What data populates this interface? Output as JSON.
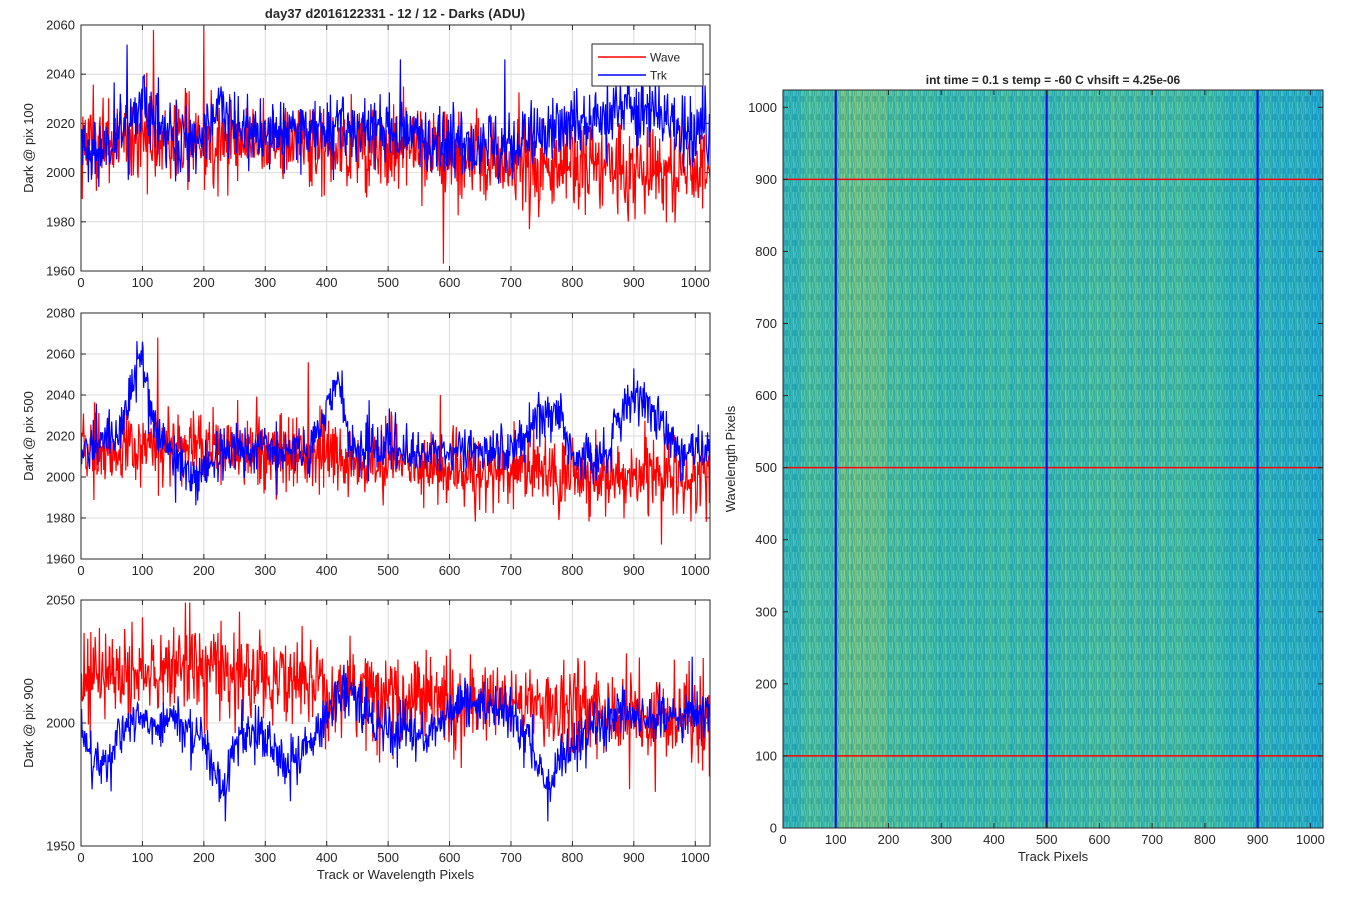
{
  "figure": {
    "suptitle": "day37 d2016122331 - 12 / 12 - Darks (ADU)",
    "colors": {
      "wave": "#ff0000",
      "trk": "#0000ff",
      "grid": "#dcdcdc",
      "axis": "#262626"
    }
  },
  "chart_data": [
    {
      "type": "line",
      "ylabel": "Dark @ pix 100",
      "xlabel": "",
      "xlim": [
        0,
        1024
      ],
      "ylim": [
        1960,
        2060
      ],
      "xticks": [
        "0",
        "100",
        "200",
        "300",
        "400",
        "500",
        "600",
        "700",
        "800",
        "900",
        "1000"
      ],
      "yticks": [
        "1960",
        "1980",
        "2000",
        "2020",
        "2040",
        "2060"
      ],
      "grid": true,
      "legend": {
        "placement": "top-right",
        "entries": [
          "Wave",
          "Trk"
        ]
      },
      "series": [
        {
          "name": "Wave",
          "color": "#ff0000",
          "mean": 2010,
          "noise": 9,
          "trend": [
            [
              0,
              2012
            ],
            [
              150,
              2014
            ],
            [
              300,
              2013
            ],
            [
              500,
              2010
            ],
            [
              700,
              2004
            ],
            [
              900,
              2002
            ],
            [
              1024,
              2000
            ]
          ],
          "spikes": [
            [
              118,
              2058
            ],
            [
              200,
              2058
            ],
            [
              440,
              2032
            ],
            [
              525,
              2035
            ],
            [
              590,
              1963
            ]
          ]
        },
        {
          "name": "Trk",
          "color": "#0000ff",
          "mean": 2015,
          "noise": 7,
          "trend": [
            [
              0,
              2012
            ],
            [
              30,
              2008
            ],
            [
              80,
              2022
            ],
            [
              100,
              2030
            ],
            [
              140,
              2016
            ],
            [
              200,
              2013
            ],
            [
              230,
              2030
            ],
            [
              260,
              2016
            ],
            [
              400,
              2018
            ],
            [
              500,
              2017
            ],
            [
              600,
              2012
            ],
            [
              700,
              2010
            ],
            [
              800,
              2020
            ],
            [
              900,
              2028
            ],
            [
              950,
              2020
            ],
            [
              1024,
              2015
            ]
          ],
          "spikes": [
            [
              75,
              2052
            ],
            [
              520,
              2046
            ],
            [
              690,
              2046
            ]
          ]
        }
      ]
    },
    {
      "type": "line",
      "ylabel": "Dark @ pix 500",
      "xlabel": "",
      "xlim": [
        0,
        1024
      ],
      "ylim": [
        1960,
        2080
      ],
      "xticks": [
        "0",
        "100",
        "200",
        "300",
        "400",
        "500",
        "600",
        "700",
        "800",
        "900",
        "1000"
      ],
      "yticks": [
        "1960",
        "1980",
        "2000",
        "2020",
        "2040",
        "2060",
        "2080"
      ],
      "grid": true,
      "series": [
        {
          "name": "Wave",
          "color": "#ff0000",
          "mean": 2008,
          "noise": 9,
          "trend": [
            [
              0,
              2012
            ],
            [
              200,
              2015
            ],
            [
              400,
              2010
            ],
            [
              600,
              2004
            ],
            [
              800,
              2003
            ],
            [
              1024,
              1998
            ]
          ],
          "spikes": [
            [
              125,
              2068
            ],
            [
              370,
              2056
            ],
            [
              585,
              2040
            ],
            [
              945,
              1967
            ]
          ]
        },
        {
          "name": "Trk",
          "color": "#0000ff",
          "mean": 2015,
          "noise": 6,
          "trend": [
            [
              0,
              2014
            ],
            [
              60,
              2018
            ],
            [
              85,
              2050
            ],
            [
              100,
              2058
            ],
            [
              115,
              2030
            ],
            [
              150,
              2012
            ],
            [
              180,
              1995
            ],
            [
              220,
              2012
            ],
            [
              300,
              2015
            ],
            [
              370,
              2012
            ],
            [
              400,
              2035
            ],
            [
              420,
              2046
            ],
            [
              440,
              2015
            ],
            [
              600,
              2012
            ],
            [
              700,
              2014
            ],
            [
              740,
              2030
            ],
            [
              780,
              2030
            ],
            [
              800,
              2012
            ],
            [
              840,
              2005
            ],
            [
              880,
              2028
            ],
            [
              900,
              2040
            ],
            [
              940,
              2030
            ],
            [
              970,
              2012
            ],
            [
              1024,
              2015
            ]
          ],
          "spikes": [
            [
              100,
              2066
            ],
            [
              425,
              2052
            ],
            [
              900,
              2053
            ]
          ]
        }
      ]
    },
    {
      "type": "line",
      "ylabel": "Dark @ pix 900",
      "xlabel": "Track or Wavelength Pixels",
      "xlim": [
        0,
        1024
      ],
      "ylim": [
        1950,
        2050
      ],
      "xticks": [
        "0",
        "100",
        "200",
        "300",
        "400",
        "500",
        "600",
        "700",
        "800",
        "900",
        "1000"
      ],
      "yticks": [
        "1950",
        "2000",
        "2050"
      ],
      "grid": true,
      "series": [
        {
          "name": "Wave",
          "color": "#ff0000",
          "mean": 2016,
          "noise": 9,
          "trend": [
            [
              0,
              2018
            ],
            [
              200,
              2022
            ],
            [
              400,
              2014
            ],
            [
              600,
              2010
            ],
            [
              800,
              2006
            ],
            [
              1024,
              2002
            ]
          ],
          "spikes": [
            [
              170,
              2049
            ],
            [
              100,
              2043
            ],
            [
              935,
              1972
            ]
          ]
        },
        {
          "name": "Trk",
          "color": "#0000ff",
          "mean": 1997,
          "noise": 5,
          "trend": [
            [
              0,
              1998
            ],
            [
              20,
              1985
            ],
            [
              40,
              1982
            ],
            [
              60,
              1998
            ],
            [
              150,
              2002
            ],
            [
              200,
              1992
            ],
            [
              230,
              1972
            ],
            [
              260,
              1995
            ],
            [
              300,
              1995
            ],
            [
              340,
              1982
            ],
            [
              380,
              1995
            ],
            [
              430,
              2015
            ],
            [
              480,
              1998
            ],
            [
              560,
              1995
            ],
            [
              620,
              2008
            ],
            [
              700,
              2005
            ],
            [
              760,
              1975
            ],
            [
              800,
              1990
            ],
            [
              880,
              2005
            ],
            [
              950,
              2002
            ],
            [
              1024,
              2005
            ]
          ],
          "spikes": [
            [
              235,
              1960
            ],
            [
              760,
              1960
            ],
            [
              995,
              2027
            ]
          ]
        }
      ]
    },
    {
      "type": "heatmap",
      "title": "int time = 0.1 s   temp = -60 C   vhsift = 4.25e-06",
      "xlabel": "Track Pixels",
      "ylabel": "Wavelength Pixels",
      "xlim": [
        0,
        1024
      ],
      "ylim": [
        0,
        1024
      ],
      "xticks": [
        "0",
        "100",
        "200",
        "300",
        "400",
        "500",
        "600",
        "700",
        "800",
        "900",
        "1000"
      ],
      "yticks": [
        "0",
        "100",
        "200",
        "300",
        "400",
        "500",
        "600",
        "700",
        "800",
        "900",
        "1000"
      ],
      "colormap": "parula",
      "vertical_lines": {
        "color": "#0000ff",
        "x": [
          100,
          500,
          900
        ]
      },
      "horizontal_lines": {
        "color": "#ff0000",
        "y": [
          100,
          500,
          900
        ]
      }
    }
  ]
}
